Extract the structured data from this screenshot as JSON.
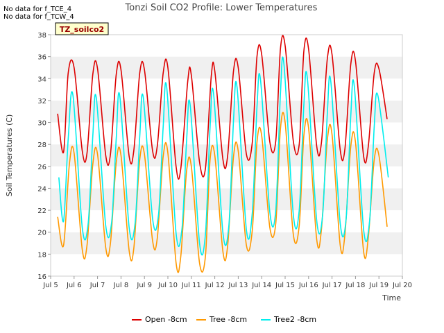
{
  "nodata": [
    "No data for f_TCE_4",
    "No data for f_TCW_4"
  ],
  "chart_data": {
    "type": "line",
    "title": "Tonzi Soil CO2 Profile: Lower Temperatures",
    "xlabel": "Time",
    "ylabel": "Soil Temperatures (C)",
    "ylim": [
      16,
      38
    ],
    "yticks": [
      16,
      18,
      20,
      22,
      24,
      26,
      28,
      30,
      32,
      34,
      36,
      38
    ],
    "xlim": [
      5,
      20
    ],
    "xticks": [
      5,
      6,
      7,
      8,
      9,
      10,
      11,
      12,
      13,
      14,
      15,
      16,
      17,
      18,
      19,
      20
    ],
    "xticklabels": [
      "Jul 5",
      "Jul 6",
      "Jul 7",
      "Jul 8",
      "Jul 9",
      "Jul 10",
      "Jul 11",
      "Jul 12",
      "Jul 13",
      "Jul 14",
      "Jul 15",
      "Jul 16",
      "Jul 17",
      "Jul 18",
      "Jul 19",
      "Jul 20"
    ],
    "grid": true,
    "legend_position": "bottom",
    "site_label": "TZ_soilco2",
    "series": [
      {
        "name": "Open -8cm",
        "color": "#dd0000",
        "x": [
          5.3,
          5.55,
          5.75,
          6.0,
          6.35,
          6.55,
          6.8,
          7.0,
          7.35,
          7.55,
          7.8,
          8.0,
          8.35,
          8.55,
          8.8,
          9.0,
          9.35,
          9.55,
          9.8,
          10.0,
          10.35,
          10.55,
          10.85,
          11.0,
          11.35,
          11.6,
          11.85,
          12.0,
          12.35,
          12.55,
          12.8,
          13.0,
          13.35,
          13.6,
          13.8,
          14.0,
          14.35,
          14.6,
          14.8,
          15.0,
          15.35,
          15.6,
          15.8,
          16.0,
          16.35,
          16.55,
          16.8,
          17.0,
          17.35,
          17.55,
          17.8,
          18.0,
          18.35,
          18.55,
          18.8,
          19.0,
          19.35
        ],
        "y": [
          30.8,
          27.3,
          34.5,
          35.0,
          27.4,
          27.2,
          34.4,
          34.9,
          27.0,
          27.1,
          34.4,
          34.8,
          26.9,
          27.5,
          34.5,
          34.8,
          27.4,
          27.9,
          34.5,
          35.0,
          26.0,
          25.8,
          33.8,
          34.3,
          26.4,
          25.8,
          34.2,
          34.7,
          26.6,
          27.0,
          34.7,
          35.0,
          27.1,
          28.2,
          36.0,
          36.2,
          28.2,
          28.3,
          36.7,
          37.0,
          28.3,
          28.0,
          36.5,
          36.7,
          27.8,
          28.2,
          35.8,
          36.2,
          27.5,
          27.6,
          35.3,
          35.6,
          26.9,
          27.9,
          34.5,
          34.9,
          30.3
        ]
      },
      {
        "name": "Tree -8cm",
        "color": "#ff9900",
        "x": [
          5.3,
          5.55,
          5.8,
          6.0,
          6.35,
          6.55,
          6.8,
          7.0,
          7.35,
          7.55,
          7.8,
          8.0,
          8.35,
          8.55,
          8.8,
          9.0,
          9.35,
          9.55,
          9.8,
          10.0,
          10.35,
          10.55,
          10.8,
          11.0,
          11.35,
          11.6,
          11.8,
          12.0,
          12.35,
          12.55,
          12.8,
          13.0,
          13.35,
          13.6,
          13.8,
          14.0,
          14.35,
          14.6,
          14.8,
          15.0,
          15.35,
          15.6,
          15.8,
          16.0,
          16.35,
          16.55,
          16.8,
          17.0,
          17.35,
          17.55,
          17.8,
          18.0,
          18.35,
          18.55,
          18.8,
          19.0,
          19.35
        ],
        "y": [
          21.4,
          18.8,
          26.2,
          27.2,
          18.4,
          18.8,
          26.2,
          27.1,
          18.6,
          19.0,
          26.4,
          27.0,
          18.3,
          18.6,
          26.6,
          27.1,
          19.2,
          19.5,
          26.9,
          27.2,
          17.2,
          17.8,
          25.6,
          26.0,
          17.2,
          17.8,
          26.6,
          27.0,
          18.2,
          18.8,
          26.9,
          27.4,
          18.8,
          20.2,
          28.2,
          28.8,
          20.4,
          20.8,
          29.4,
          30.0,
          19.8,
          20.6,
          28.8,
          29.5,
          19.3,
          20.3,
          28.4,
          28.9,
          18.8,
          19.8,
          27.8,
          28.2,
          18.2,
          19.6,
          26.6,
          27.0,
          20.5
        ]
      },
      {
        "name": "Tree2 -8cm",
        "color": "#00eeee",
        "x": [
          5.35,
          5.55,
          5.75,
          5.95,
          6.35,
          6.6,
          6.8,
          6.95,
          7.35,
          7.6,
          7.8,
          7.95,
          8.35,
          8.6,
          8.8,
          8.95,
          9.35,
          9.6,
          9.8,
          9.95,
          10.35,
          10.6,
          10.8,
          10.95,
          11.35,
          11.6,
          11.8,
          11.95,
          12.35,
          12.6,
          12.8,
          12.95,
          13.35,
          13.6,
          13.8,
          13.95,
          14.35,
          14.6,
          14.8,
          14.95,
          15.35,
          15.6,
          15.8,
          15.95,
          16.35,
          16.6,
          16.8,
          16.95,
          17.35,
          17.6,
          17.8,
          17.95,
          18.35,
          18.6,
          18.8,
          18.95,
          19.4
        ],
        "y": [
          25.0,
          21.0,
          28.5,
          32.5,
          20.4,
          20.8,
          28.8,
          32.2,
          20.6,
          20.9,
          28.6,
          32.4,
          20.4,
          20.8,
          28.7,
          32.3,
          21.2,
          21.6,
          29.6,
          33.2,
          19.9,
          20.3,
          28.4,
          31.6,
          19.0,
          19.8,
          29.6,
          32.6,
          19.9,
          20.6,
          30.2,
          33.2,
          20.2,
          21.8,
          31.4,
          33.9,
          21.8,
          22.0,
          32.6,
          35.3,
          21.6,
          22.0,
          31.6,
          34.0,
          21.0,
          21.6,
          30.8,
          33.7,
          20.8,
          21.2,
          30.6,
          33.3,
          20.2,
          21.0,
          29.6,
          32.5,
          25.0
        ]
      }
    ]
  }
}
